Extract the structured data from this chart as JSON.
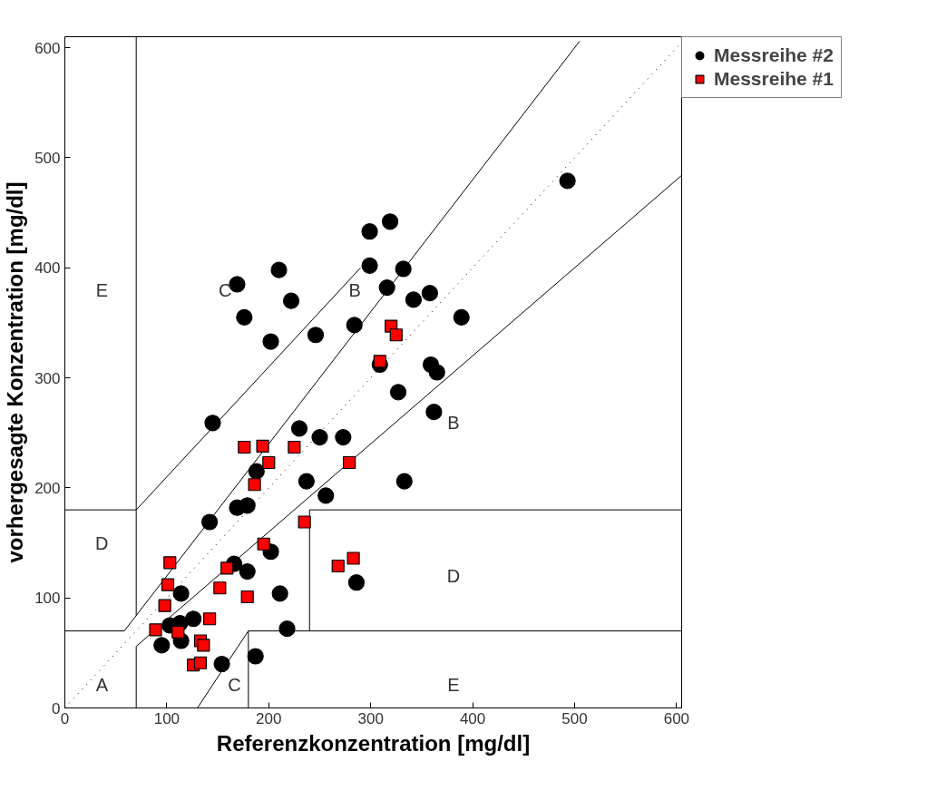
{
  "chart_data": {
    "type": "scatter",
    "xlabel": "Referenzkonzentration [mg/dl]",
    "ylabel": "vorhergesagte Konzentration [mg/dl]",
    "xlim": [
      0,
      605
    ],
    "ylim": [
      0,
      610
    ],
    "xticks": [
      0,
      100,
      200,
      300,
      400,
      500,
      600
    ],
    "yticks": [
      0,
      100,
      200,
      300,
      400,
      500,
      600
    ],
    "grid": false,
    "legend": "top right",
    "annotations": [
      "A",
      "C",
      "E",
      "D",
      "D",
      "E",
      "C",
      "B",
      "B"
    ],
    "series": [
      {
        "type": "line",
        "color": "#000000",
        "line_style": "dotted",
        "x": [
          0,
          605
        ],
        "values": [
          0,
          605
        ]
      },
      {
        "type": "line",
        "color": "#000000",
        "line_style": "solid",
        "x": [
          0,
          58.33,
          505,
          null,
          70,
          70,
          605,
          null,
          70,
          70,
          null,
          0,
          70,
          290,
          null,
          130,
          180,
          605,
          null,
          180,
          180,
          null,
          240,
          240,
          605
        ],
        "values": [
          70,
          70,
          606,
          null,
          0,
          56,
          484,
          null,
          84,
          610,
          null,
          180,
          180,
          400,
          null,
          0,
          70,
          70,
          null,
          0,
          70,
          null,
          70,
          180,
          180
        ]
      },
      {
        "name": "Messreihe #2",
        "marker": "circle",
        "color": "#000000",
        "x": [
          145,
          169,
          176,
          210,
          222,
          202,
          246,
          230,
          250,
          188,
          237,
          256,
          299,
          319,
          299,
          332,
          316,
          342,
          358,
          284,
          389,
          359,
          365,
          327,
          362,
          273,
          333,
          309,
          493,
          169,
          179,
          142,
          202,
          166,
          179,
          211,
          114,
          126,
          103,
          113,
          114,
          95,
          218,
          187,
          154,
          286
        ],
        "values": [
          259,
          385,
          355,
          398,
          370,
          333,
          339,
          254,
          246,
          215,
          206,
          193,
          433,
          442,
          402,
          399,
          382,
          371,
          377,
          348,
          355,
          312,
          305,
          287,
          269,
          246,
          206,
          312,
          479,
          182,
          184,
          169,
          142,
          131,
          124,
          104,
          104,
          81,
          75,
          77,
          61,
          57,
          72,
          47,
          40,
          114
        ]
      },
      {
        "name": "Messreihe #1",
        "marker": "square",
        "color": "#ff0000",
        "x": [
          176,
          194,
          225,
          200,
          186,
          320,
          325,
          309,
          279,
          235,
          195,
          103,
          159,
          101,
          152,
          179,
          98,
          142,
          89,
          111,
          133,
          136,
          126,
          133,
          268,
          283
        ],
        "values": [
          237,
          238,
          237,
          223,
          203,
          347,
          339,
          315,
          223,
          169,
          149,
          132,
          127,
          112,
          109,
          101,
          93,
          81,
          71,
          69,
          61,
          57,
          39,
          41,
          129,
          136
        ]
      }
    ]
  }
}
